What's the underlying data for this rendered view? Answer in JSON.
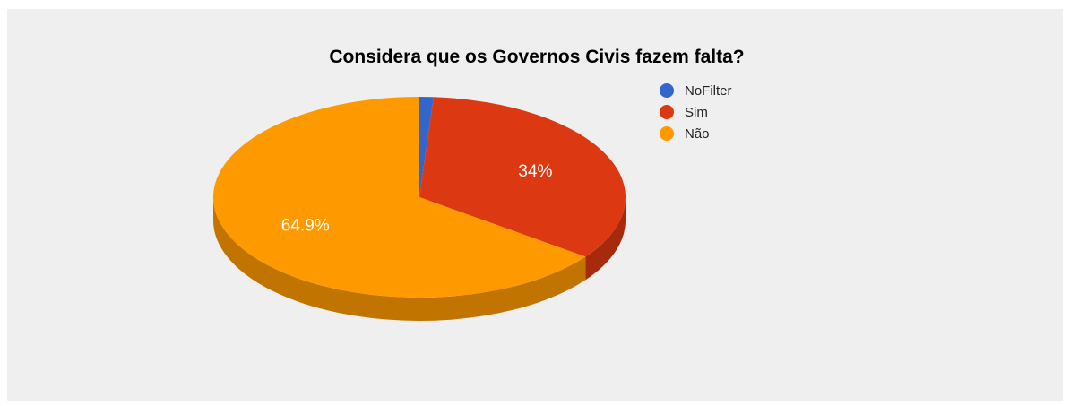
{
  "chart_data": {
    "type": "pie",
    "title": "Considera que os Governos Civis fazem falta?",
    "slices": [
      {
        "name": "NoFilter",
        "value": 1.1,
        "label": "",
        "color": "#3366cc",
        "side": "#244a96"
      },
      {
        "name": "Sim",
        "value": 34.0,
        "label": "34%",
        "color": "#dc3912",
        "side": "#a82a0c"
      },
      {
        "name": "Não",
        "value": 64.9,
        "label": "64.9%",
        "color": "#ff9900",
        "side": "#c27400"
      }
    ],
    "legend_position": "right",
    "style": "3d"
  }
}
